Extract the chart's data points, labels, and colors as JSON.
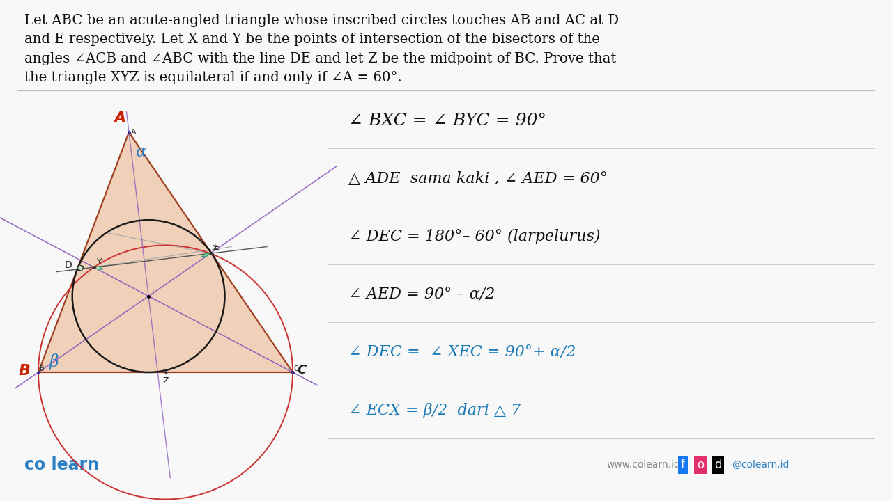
{
  "bg_color": "#f8f8f8",
  "title_lines": [
    "Let ABC be an acute-angled triangle whose inscribed circles touches AB and AC at D",
    "and E respectively. Let X and Y be the points of intersection of the bisectors of the",
    "angles ∠ACB and ∠ABC with the line DE and let Z be the midpoint of BC. Prove that",
    "the triangle XYZ is equilateral if and only if ∠A = 60°."
  ],
  "blue_color": "#2b7fc2",
  "red_label_color": "#cc2200",
  "triangle_fill": "#f0d0b8",
  "triangle_edge": "#a04020",
  "incircle_color": "#1a1a1a",
  "arc_color": "#cc3333",
  "bisector_color_1": "#8855bb",
  "bisector_color_2": "#8855bb",
  "gray_line_color": "#999999",
  "green_sq_color": "#2eaa6e",
  "dark_sq_color": "#333333",
  "alpha_color": "#2b7fc2",
  "beta_color": "#2b7fc2",
  "note_black": "#111111",
  "note_blue": "#1a7ab5",
  "footer_color": "#2b7fc2"
}
